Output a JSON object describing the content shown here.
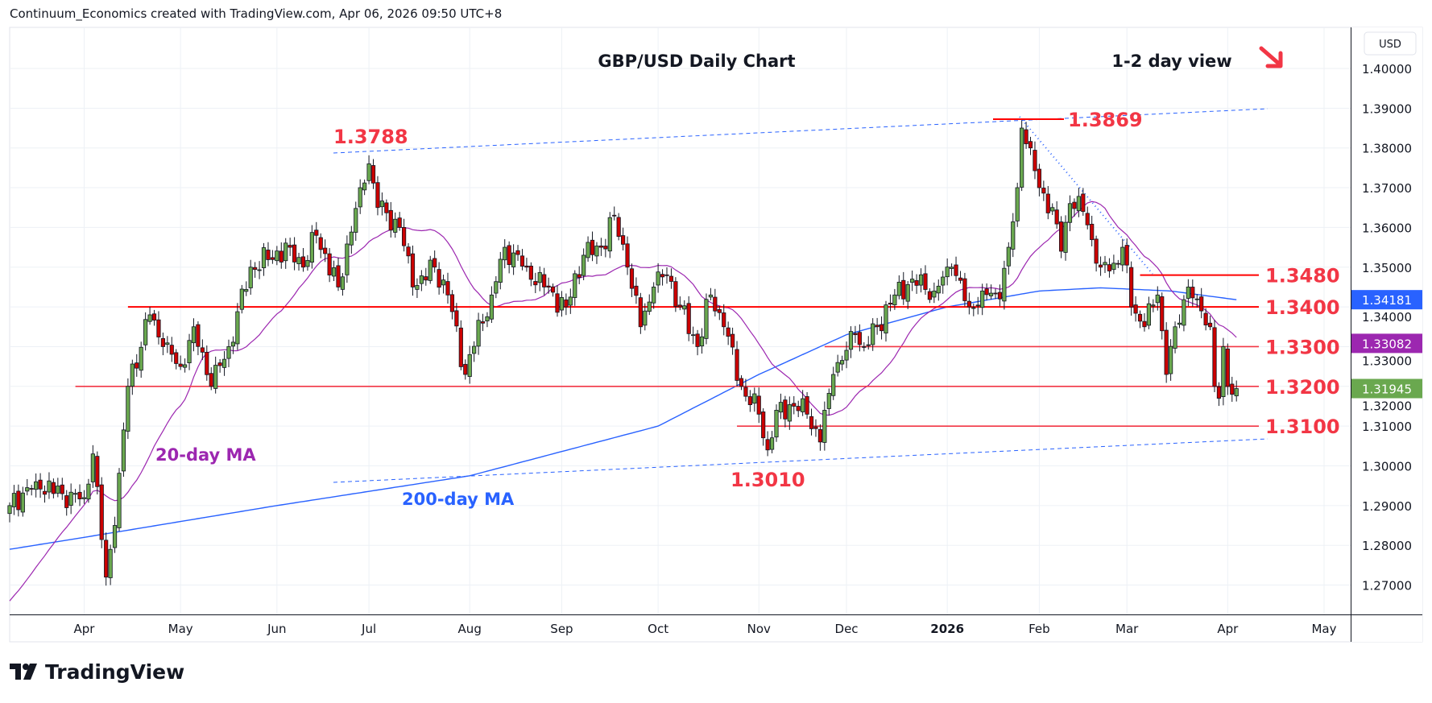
{
  "header": {
    "attribution": "Continuum_Economics created with TradingView.com, Apr 06, 2026 09:50 UTC+8"
  },
  "logo": {
    "text": "TradingView"
  },
  "chart_data": {
    "type": "candlestick",
    "title": "GBP/USD Daily Chart",
    "subtitle": "1-2 day view",
    "bias_arrow": "down-right",
    "currency": "USD",
    "ylim": [
      1.265,
      1.405
    ],
    "y_ticks": [
      "1.40000",
      "1.39000",
      "1.38000",
      "1.37000",
      "1.36000",
      "1.35000",
      "1.34000",
      "1.33000",
      "1.32000",
      "1.31000",
      "1.30000",
      "1.29000",
      "1.28000",
      "1.27000"
    ],
    "x_ticks": [
      "Apr",
      "May",
      "Jun",
      "Jul",
      "Aug",
      "Sep",
      "Oct",
      "Nov",
      "Dec",
      "2026",
      "Feb",
      "Mar",
      "Apr",
      "May"
    ],
    "x_tick_days": [
      17,
      39,
      61,
      82,
      105,
      126,
      148,
      171,
      191,
      214,
      235,
      255,
      278,
      300
    ],
    "close_waypoints": [
      [
        0,
        1.29
      ],
      [
        6,
        1.296
      ],
      [
        12,
        1.293
      ],
      [
        17,
        1.292
      ],
      [
        19,
        1.303
      ],
      [
        22,
        1.272
      ],
      [
        24,
        1.285
      ],
      [
        27,
        1.32
      ],
      [
        32,
        1.338
      ],
      [
        35,
        1.33
      ],
      [
        39,
        1.325
      ],
      [
        42,
        1.335
      ],
      [
        46,
        1.32
      ],
      [
        50,
        1.33
      ],
      [
        55,
        1.35
      ],
      [
        64,
        1.355
      ],
      [
        67,
        1.35
      ],
      [
        70,
        1.358
      ],
      [
        75,
        1.345
      ],
      [
        80,
        1.37
      ],
      [
        82,
        1.376
      ],
      [
        84,
        1.365
      ],
      [
        89,
        1.36
      ],
      [
        92,
        1.345
      ],
      [
        97,
        1.35
      ],
      [
        100,
        1.343
      ],
      [
        104,
        1.323
      ],
      [
        105,
        1.328
      ],
      [
        110,
        1.343
      ],
      [
        113,
        1.355
      ],
      [
        118,
        1.35
      ],
      [
        122,
        1.345
      ],
      [
        127,
        1.34
      ],
      [
        131,
        1.353
      ],
      [
        135,
        1.355
      ],
      [
        138,
        1.363
      ],
      [
        141,
        1.35
      ],
      [
        144,
        1.335
      ],
      [
        147,
        1.345
      ],
      [
        150,
        1.348
      ],
      [
        153,
        1.34
      ],
      [
        157,
        1.33
      ],
      [
        160,
        1.343
      ],
      [
        163,
        1.335
      ],
      [
        167,
        1.32
      ],
      [
        171,
        1.313
      ],
      [
        173,
        1.304
      ],
      [
        175,
        1.314
      ],
      [
        179,
        1.315
      ],
      [
        182,
        1.313
      ],
      [
        185,
        1.306
      ],
      [
        188,
        1.323
      ],
      [
        193,
        1.333
      ],
      [
        195,
        1.33
      ],
      [
        198,
        1.335
      ],
      [
        202,
        1.343
      ],
      [
        206,
        1.347
      ],
      [
        211,
        1.344
      ],
      [
        215,
        1.35
      ],
      [
        219,
        1.34
      ],
      [
        222,
        1.344
      ],
      [
        226,
        1.342
      ],
      [
        228,
        1.355
      ],
      [
        230,
        1.37
      ],
      [
        231,
        1.385
      ],
      [
        233,
        1.38
      ],
      [
        235,
        1.37
      ],
      [
        238,
        1.365
      ],
      [
        240,
        1.354
      ],
      [
        242,
        1.366
      ],
      [
        245,
        1.364
      ],
      [
        249,
        1.35
      ],
      [
        252,
        1.351
      ],
      [
        254,
        1.355
      ],
      [
        256,
        1.34
      ],
      [
        259,
        1.335
      ],
      [
        262,
        1.343
      ],
      [
        264,
        1.323
      ],
      [
        266,
        1.335
      ],
      [
        269,
        1.345
      ],
      [
        271,
        1.342
      ],
      [
        274,
        1.335
      ],
      [
        275,
        1.32
      ],
      [
        276,
        1.317
      ],
      [
        277,
        1.33
      ],
      [
        278,
        1.32
      ],
      [
        279,
        1.318
      ],
      [
        280,
        1.31945
      ]
    ],
    "ma200_waypoints": [
      [
        0,
        1.279
      ],
      [
        17,
        1.282
      ],
      [
        61,
        1.29
      ],
      [
        105,
        1.2975
      ],
      [
        148,
        1.31
      ],
      [
        171,
        1.323
      ],
      [
        191,
        1.333
      ],
      [
        214,
        1.34
      ],
      [
        235,
        1.344
      ],
      [
        249,
        1.3448
      ],
      [
        265,
        1.344
      ],
      [
        280,
        1.3418
      ]
    ],
    "levels": [
      {
        "label": "1.3480",
        "value": 1.348,
        "from_day": 258
      },
      {
        "label": "1.3400",
        "value": 1.34,
        "from_day": 27
      },
      {
        "label": "1.3300",
        "value": 1.33,
        "from_day": 186
      },
      {
        "label": "1.3200",
        "value": 1.32,
        "from_day": 15
      },
      {
        "label": "1.3100",
        "value": 1.31,
        "from_day": 166
      }
    ],
    "annotations": {
      "high_2025": "1.3788",
      "high_2026": "1.3869",
      "low": "1.3010",
      "ma20_label": "20-day MA",
      "ma200_label": "200-day MA"
    },
    "price_tags": [
      {
        "label": "1.34181",
        "value": 1.34181,
        "color": "#2962ff",
        "series": "200-day MA"
      },
      {
        "label": "1.33082",
        "value": 1.33082,
        "color": "#9c27b0",
        "series": "20-day MA"
      },
      {
        "label": "1.31945",
        "value": 1.31945,
        "color": "#6aa84f",
        "series": "last price"
      }
    ],
    "colors": {
      "up": "#6aa84f",
      "down": "#cc0000",
      "level": "#f23645",
      "ma20": "#9c27b0",
      "ma200": "#2962ff"
    }
  }
}
